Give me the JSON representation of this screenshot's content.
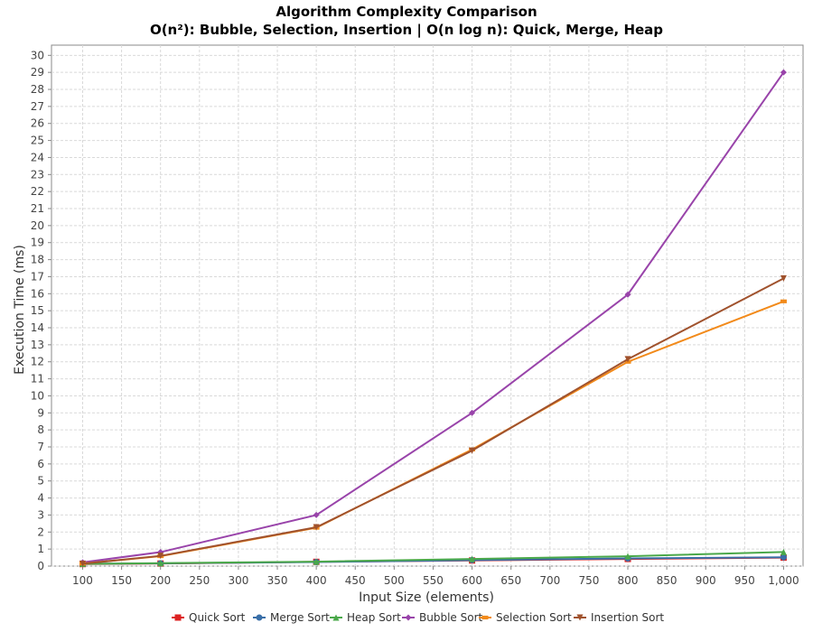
{
  "chart_data": {
    "type": "line",
    "title": "Algorithm Complexity Comparison",
    "subtitle": "O(n²): Bubble, Selection, Insertion | O(n log n): Quick, Merge, Heap",
    "xlabel": "Input Size (elements)",
    "ylabel": "Execution Time (ms)",
    "xlim": [
      60,
      1025
    ],
    "ylim": [
      0,
      30.6
    ],
    "xticks": [
      100,
      150,
      200,
      250,
      300,
      350,
      400,
      450,
      500,
      550,
      600,
      650,
      700,
      750,
      800,
      850,
      900,
      950,
      1000
    ],
    "xtick_labels": [
      "100",
      "150",
      "200",
      "250",
      "300",
      "350",
      "400",
      "450",
      "500",
      "550",
      "600",
      "650",
      "700",
      "750",
      "800",
      "850",
      "900",
      "950",
      "1,000"
    ],
    "yticks": [
      0,
      1,
      2,
      3,
      4,
      5,
      6,
      7,
      8,
      9,
      10,
      11,
      12,
      13,
      14,
      15,
      16,
      17,
      18,
      19,
      20,
      21,
      22,
      23,
      24,
      25,
      26,
      27,
      28,
      29,
      30
    ],
    "grid": true,
    "legend_position": "bottom",
    "x": [
      100,
      200,
      400,
      600,
      800,
      1000
    ],
    "series": [
      {
        "name": "Quick Sort",
        "color": "#dd2222",
        "marker": "square",
        "values": [
          0.12,
          0.15,
          0.25,
          0.33,
          0.42,
          0.5
        ]
      },
      {
        "name": "Merge Sort",
        "color": "#3a6fa8",
        "marker": "circle",
        "values": [
          0.14,
          0.16,
          0.24,
          0.35,
          0.45,
          0.52
        ]
      },
      {
        "name": "Heap Sort",
        "color": "#4aa84a",
        "marker": "triangle-up",
        "values": [
          0.13,
          0.17,
          0.26,
          0.42,
          0.58,
          0.83
        ]
      },
      {
        "name": "Bubble Sort",
        "color": "#9944aa",
        "marker": "diamond",
        "values": [
          0.22,
          0.82,
          3.0,
          9.0,
          15.95,
          29.0
        ]
      },
      {
        "name": "Selection Sort",
        "color": "#f28a1a",
        "marker": "rect",
        "values": [
          0.15,
          0.58,
          2.25,
          6.85,
          12.0,
          15.55
        ]
      },
      {
        "name": "Insertion Sort",
        "color": "#a0522d",
        "marker": "triangle-down",
        "values": [
          0.14,
          0.6,
          2.28,
          6.78,
          12.15,
          16.9
        ]
      }
    ]
  }
}
